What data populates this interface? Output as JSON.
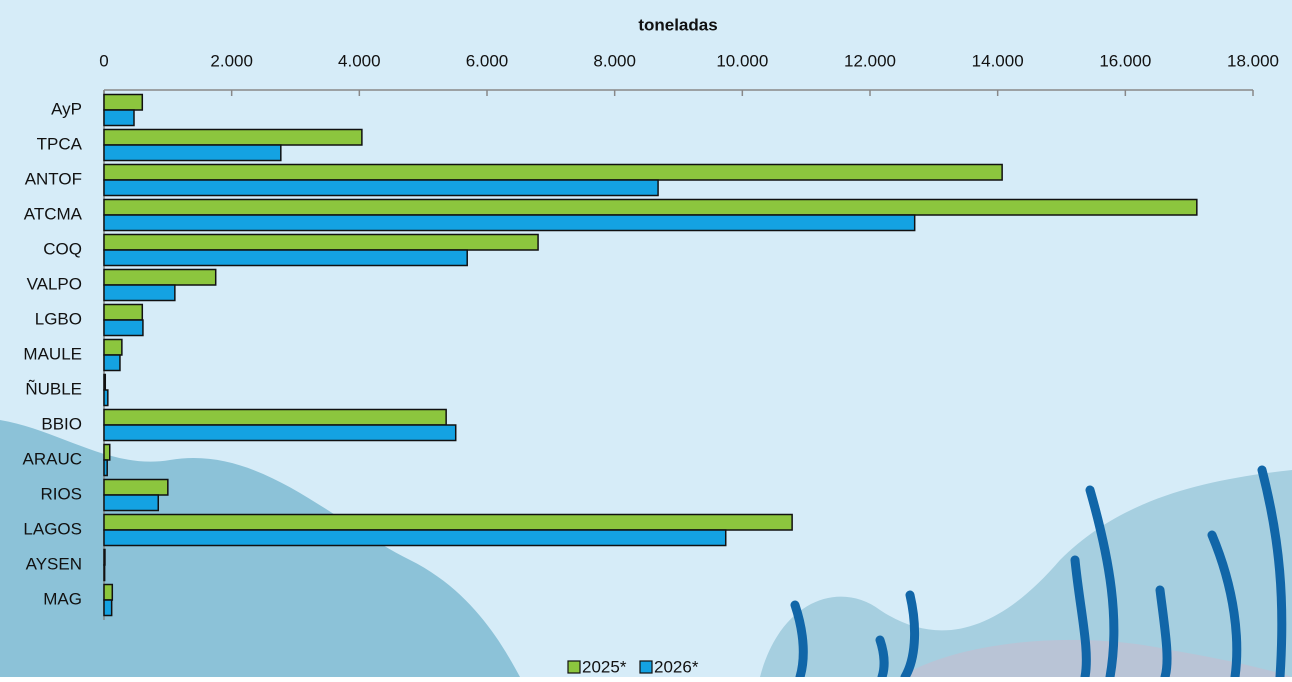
{
  "chart_data": {
    "type": "hbar",
    "x_label": "toneladas",
    "categories": [
      "AyP",
      "TPCA",
      "ANTOF",
      "ATCMA",
      "COQ",
      "VALPO",
      "LGBO",
      "MAULE",
      "ÑUBLE",
      "BBIO",
      "ARAUC",
      "RIOS",
      "LAGOS",
      "AYSEN",
      "MAG"
    ],
    "series": [
      {
        "name": "2025*",
        "color": "#8cc63e",
        "values": [
          600,
          4040,
          14070,
          17120,
          6800,
          1750,
          600,
          280,
          20,
          5360,
          90,
          1000,
          10780,
          15,
          130
        ]
      },
      {
        "name": "2026*",
        "color": "#14a2e2",
        "values": [
          470,
          2770,
          8680,
          12700,
          5690,
          1110,
          610,
          250,
          60,
          5510,
          50,
          850,
          9740,
          10,
          120
        ]
      }
    ],
    "xlim": [
      0,
      18000
    ],
    "xticks": [
      0,
      {
        "value": 2000,
        "label": "2.000"
      },
      {
        "value": 4000,
        "label": "4.000"
      },
      {
        "value": 6000,
        "label": "6.000"
      },
      {
        "value": 8000,
        "label": "8.000"
      },
      {
        "value": 10000,
        "label": "10.000"
      },
      {
        "value": 12000,
        "label": "12.000"
      },
      {
        "value": 14000,
        "label": "14.000"
      },
      {
        "value": 16000,
        "label": "16.000"
      },
      {
        "value": 18000,
        "label": "18.000"
      }
    ],
    "legend": "bottom"
  }
}
